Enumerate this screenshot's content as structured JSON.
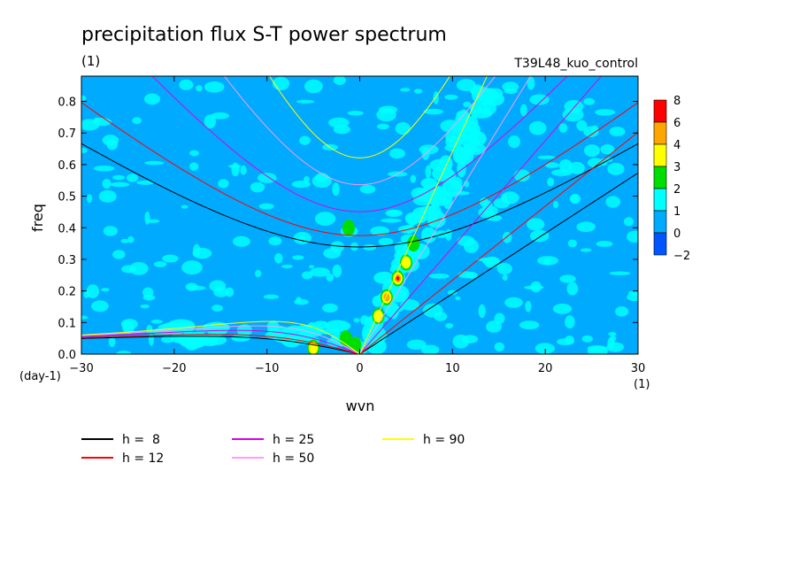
{
  "chart_data": {
    "type": "heatmap",
    "title": "precipitation flux S-T power spectrum",
    "subtitle_left": "(1)",
    "subtitle_right": "T39L48_kuo_control",
    "xlabel": "wvn",
    "ylabel": "freq",
    "x_unit": "(1)",
    "y_unit": "(day-1)",
    "xlim": [
      -30,
      30
    ],
    "ylim": [
      0,
      0.88
    ],
    "x_ticks": [
      -30,
      -20,
      -10,
      0,
      10,
      20,
      30
    ],
    "y_ticks": [
      0.0,
      0.1,
      0.2,
      0.3,
      0.4,
      0.5,
      0.6,
      0.7,
      0.8
    ],
    "y_tick_labels": [
      "0.0",
      "0.1",
      "0.2",
      "0.3",
      "0.4",
      "0.5",
      "0.6",
      "0.7",
      "0.8"
    ],
    "colorbar": {
      "labels": [
        "8",
        "6",
        "4",
        "3",
        "2",
        "1",
        "0",
        "-2"
      ],
      "colors": [
        "#ff0000",
        "#ffa500",
        "#ffff00",
        "#00dd00",
        "#00ffff",
        "#00aaff",
        "#0055ff"
      ]
    },
    "background_level_color": "#00aaff",
    "series": [
      {
        "name": "h =  8",
        "color": "#000000"
      },
      {
        "name": "h = 12",
        "color": "#ff0000"
      },
      {
        "name": "h = 25",
        "color": "#dd00dd"
      },
      {
        "name": "h = 50",
        "color": "#ff99ff"
      },
      {
        "name": "h = 90",
        "color": "#ffff00"
      }
    ],
    "legend_position": "bottom"
  }
}
